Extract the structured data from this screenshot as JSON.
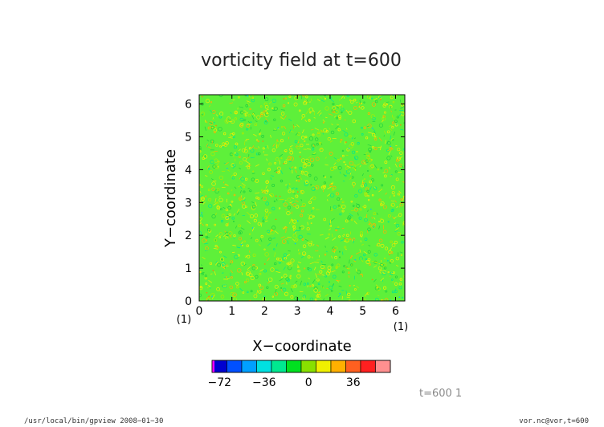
{
  "chart_data": {
    "type": "heatmap",
    "title": "vorticity field at t=600",
    "xlabel": "X−coordinate",
    "ylabel": "Y−coordinate",
    "xlim": [
      0,
      6.283
    ],
    "ylim": [
      0,
      6.283
    ],
    "x_ticks": [
      "0",
      "1",
      "2",
      "3",
      "4",
      "5",
      "6"
    ],
    "y_ticks": [
      "0",
      "1",
      "2",
      "3",
      "4",
      "5",
      "6"
    ],
    "x_index_note": "(1)",
    "y_index_note": "(1)",
    "field_description": "turbulent vorticity field, values mostly between -6 and 18 (green to yellow)",
    "colorbar": {
      "tick_labels": [
        "−72",
        "−36",
        "0",
        "36"
      ],
      "tick_values": [
        -72,
        -36,
        0,
        36
      ],
      "levels": [
        -78,
        -66,
        -54,
        -42,
        -30,
        -18,
        -6,
        6,
        18,
        30,
        42,
        54,
        66
      ],
      "colors": [
        "#ff00ff",
        "#0000d0",
        "#0050ff",
        "#00a0ff",
        "#00e0e0",
        "#00e890",
        "#00e020",
        "#88e000",
        "#f0f000",
        "#ffb000",
        "#ff6020",
        "#ff2020",
        "#ff9090"
      ]
    },
    "annotation": "t=600 1"
  },
  "footer": {
    "left": "/usr/local/bin/gpview  2008−01−30",
    "right": "vor.nc@vor,t=600"
  }
}
